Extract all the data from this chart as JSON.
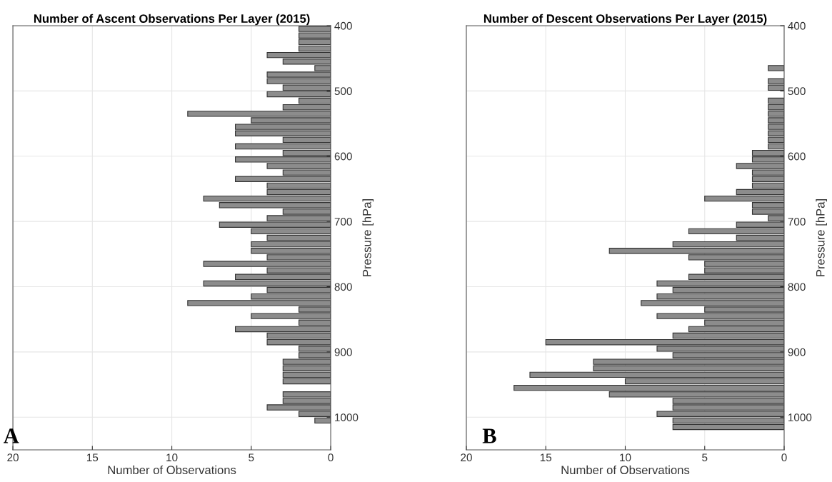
{
  "chart_data": [
    {
      "type": "bar",
      "orientation": "horizontal",
      "title": "Number of Ascent Observations Per Layer (2015)",
      "xlabel": "Number of Observations",
      "ylabel": "Pressure [hPa]",
      "x": [
        405,
        415,
        425,
        435,
        445,
        455,
        465,
        475,
        485,
        495,
        505,
        515,
        525,
        535,
        545,
        555,
        565,
        575,
        585,
        595,
        605,
        615,
        625,
        635,
        645,
        655,
        665,
        675,
        685,
        695,
        705,
        715,
        725,
        735,
        745,
        755,
        765,
        775,
        785,
        795,
        805,
        815,
        825,
        835,
        845,
        855,
        865,
        875,
        885,
        895,
        905,
        915,
        925,
        935,
        945,
        955,
        965,
        975,
        985,
        995,
        1005
      ],
      "values": [
        2,
        2,
        2,
        2,
        4,
        3,
        1,
        4,
        4,
        3,
        4,
        2,
        3,
        9,
        5,
        6,
        6,
        3,
        6,
        3,
        6,
        4,
        3,
        6,
        4,
        4,
        8,
        7,
        3,
        4,
        7,
        5,
        4,
        5,
        5,
        4,
        8,
        4,
        6,
        8,
        4,
        5,
        9,
        2,
        5,
        2,
        6,
        4,
        4,
        2,
        2,
        3,
        3,
        3,
        3,
        null,
        3,
        3,
        4,
        2,
        1
      ],
      "color": "#8c8c8c",
      "xlim": [
        20,
        0
      ],
      "xticks": [
        20,
        15,
        10,
        5,
        0
      ],
      "ylim": [
        1050,
        400
      ],
      "yticks": [
        400,
        500,
        600,
        700,
        800,
        900,
        1000
      ],
      "grid": true,
      "annotations": [
        "A"
      ]
    },
    {
      "type": "bar",
      "orientation": "horizontal",
      "title": "Number of Descent Observations Per Layer (2015)",
      "xlabel": "Number of Observations",
      "ylabel": "Pressure [hPa]",
      "x": [
        465,
        475,
        485,
        495,
        505,
        515,
        525,
        535,
        545,
        555,
        565,
        575,
        585,
        595,
        605,
        615,
        625,
        635,
        645,
        655,
        665,
        675,
        685,
        695,
        705,
        715,
        725,
        735,
        745,
        755,
        765,
        775,
        785,
        795,
        805,
        815,
        825,
        835,
        845,
        855,
        865,
        875,
        885,
        895,
        905,
        915,
        925,
        935,
        945,
        955,
        965,
        975,
        985,
        995,
        1005,
        1015
      ],
      "values": [
        1,
        null,
        1,
        1,
        null,
        1,
        1,
        1,
        1,
        1,
        1,
        1,
        1,
        2,
        2,
        3,
        2,
        2,
        2,
        3,
        5,
        2,
        2,
        1,
        3,
        6,
        3,
        7,
        11,
        6,
        5,
        5,
        6,
        8,
        7,
        8,
        9,
        5,
        8,
        5,
        6,
        7,
        15,
        8,
        7,
        12,
        12,
        16,
        10,
        17,
        11,
        7,
        7,
        8,
        7,
        7
      ],
      "color": "#8c8c8c",
      "xlim": [
        20,
        0
      ],
      "xticks": [
        20,
        15,
        10,
        5,
        0
      ],
      "ylim": [
        1050,
        400
      ],
      "yticks": [
        400,
        500,
        600,
        700,
        800,
        900,
        1000
      ],
      "grid": true,
      "annotations": [
        "B"
      ]
    }
  ]
}
